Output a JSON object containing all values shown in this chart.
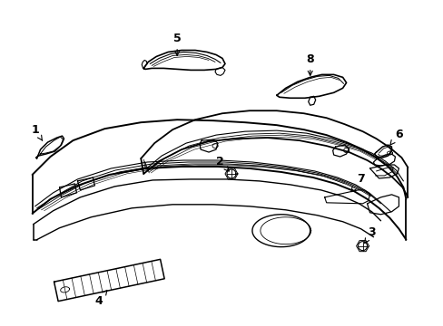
{
  "background_color": "#ffffff",
  "line_color": "#000000",
  "figsize": [
    4.89,
    3.6
  ],
  "dpi": 100,
  "label_fontsize": 9
}
